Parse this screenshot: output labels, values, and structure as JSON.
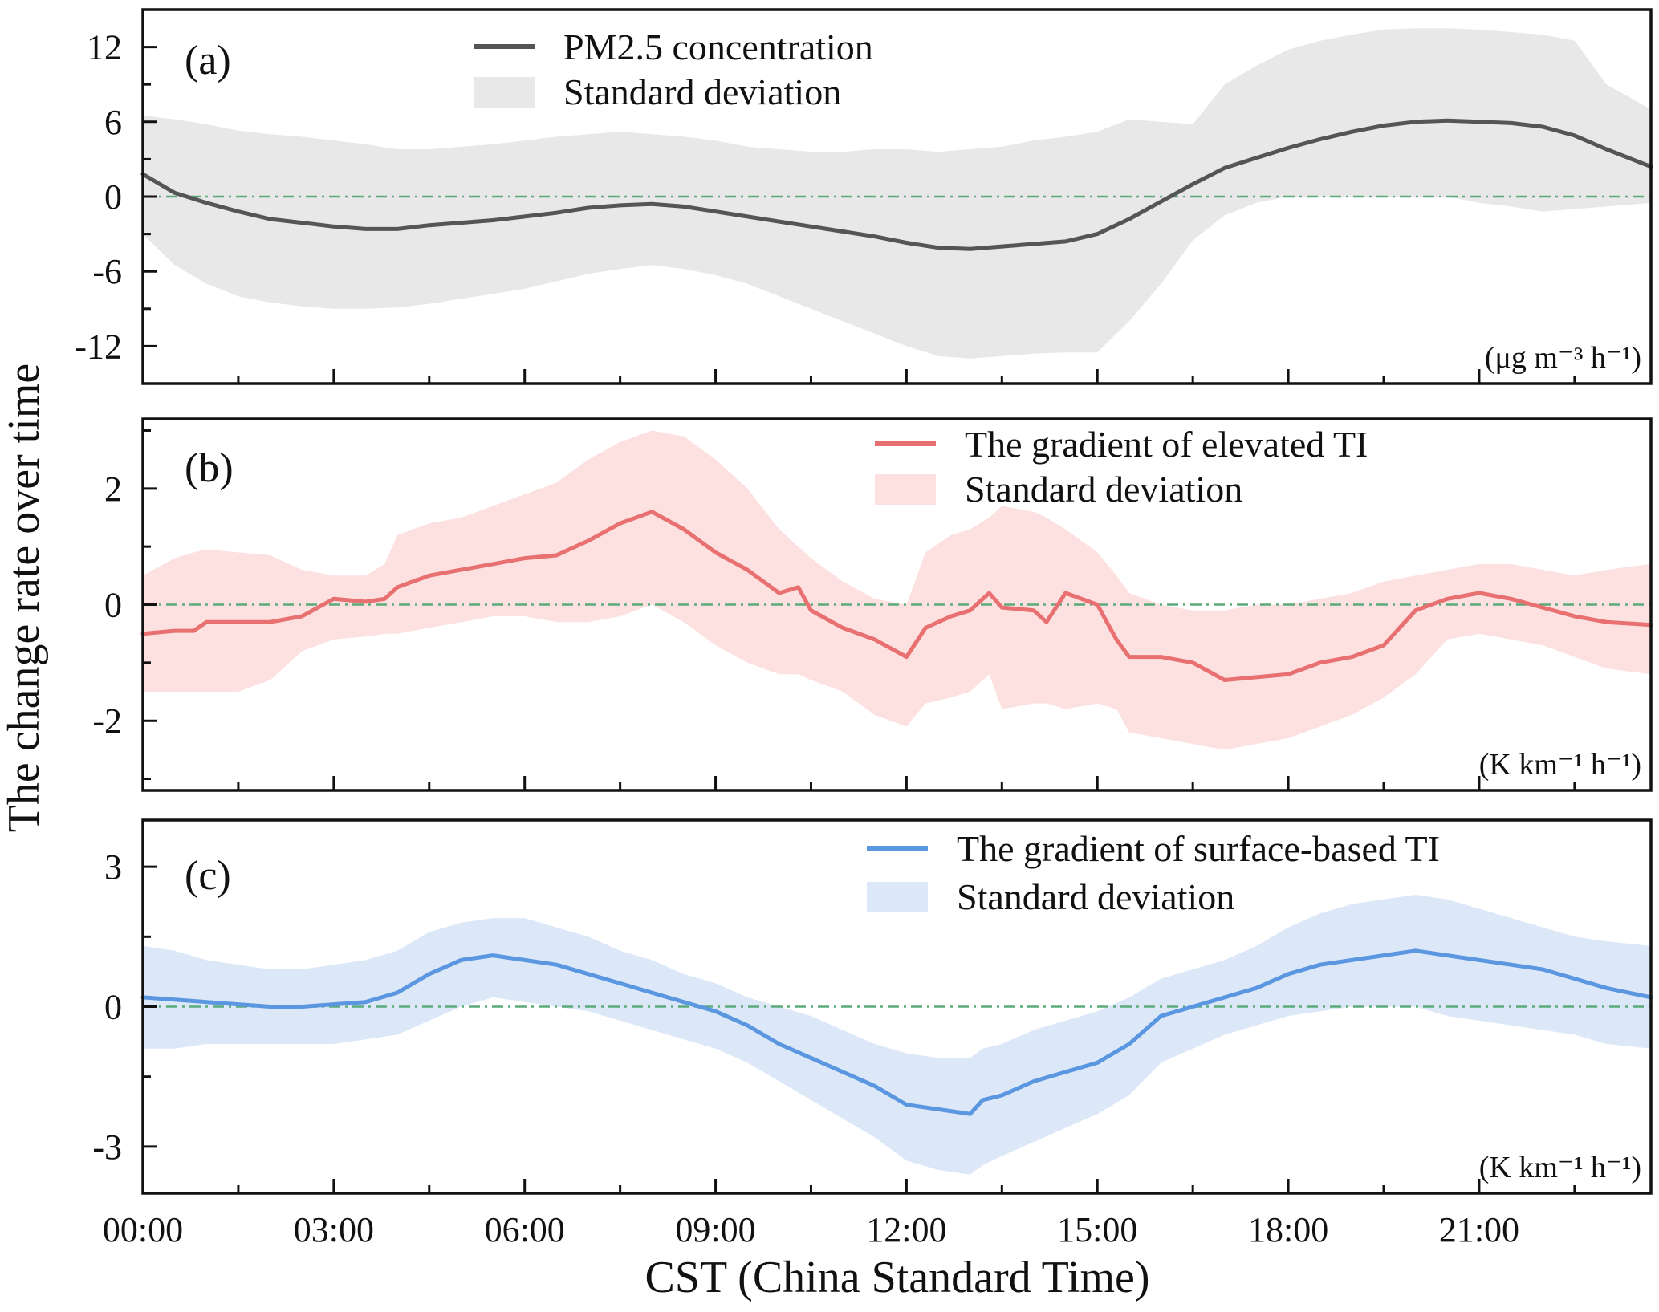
{
  "y_axis_title": "The change rate over time",
  "x_axis_title": "CST (China Standard Time)",
  "x_tick_labels": [
    "00:00",
    "03:00",
    "06:00",
    "09:00",
    "12:00",
    "15:00",
    "18:00",
    "21:00"
  ],
  "zero_line_color": "#5aaa7a",
  "chart_data": [
    {
      "type": "line",
      "panel_label": "(a)",
      "unit": "(μg m⁻³ h⁻¹)",
      "xlim": [
        0,
        23.7
      ],
      "ylim": [
        -15,
        15
      ],
      "yticks": [
        "12",
        "6",
        "0",
        "-6",
        "-12"
      ],
      "ytick_values": [
        12,
        6,
        0,
        -6,
        -12
      ],
      "line_color": "#555555",
      "band_color": "#e8e8e8",
      "legend": [
        "PM2.5 concentration",
        "Standard deviation"
      ],
      "series": [
        {
          "name": "PM2.5 concentration",
          "x": [
            0,
            0.5,
            1,
            1.5,
            2,
            2.5,
            3,
            3.5,
            4,
            4.5,
            5,
            5.5,
            6,
            6.5,
            7,
            7.5,
            8,
            8.5,
            9,
            9.5,
            10,
            10.5,
            11,
            11.5,
            12,
            12.5,
            13,
            13.5,
            14,
            14.5,
            15,
            15.5,
            16,
            16.5,
            17,
            17.5,
            18,
            18.5,
            19,
            19.5,
            20,
            20.5,
            21,
            21.5,
            22,
            22.5,
            23,
            23.7
          ],
          "y": [
            1.8,
            0.3,
            -0.5,
            -1.2,
            -1.8,
            -2.1,
            -2.4,
            -2.6,
            -2.6,
            -2.3,
            -2.1,
            -1.9,
            -1.6,
            -1.3,
            -0.9,
            -0.7,
            -0.6,
            -0.8,
            -1.2,
            -1.6,
            -2.0,
            -2.4,
            -2.8,
            -3.2,
            -3.7,
            -4.1,
            -4.2,
            -4.0,
            -3.8,
            -3.6,
            -3.0,
            -1.8,
            -0.4,
            1.0,
            2.3,
            3.1,
            3.9,
            4.6,
            5.2,
            5.7,
            6.0,
            6.1,
            6.0,
            5.9,
            5.6,
            4.9,
            3.8,
            2.4
          ],
          "upper": [
            6.5,
            6.2,
            5.8,
            5.3,
            5.0,
            4.8,
            4.5,
            4.2,
            3.8,
            3.8,
            4.0,
            4.2,
            4.5,
            4.8,
            5.0,
            5.2,
            5.0,
            4.8,
            4.5,
            4.0,
            3.8,
            3.6,
            3.6,
            3.8,
            3.8,
            3.6,
            3.8,
            4.0,
            4.5,
            4.8,
            5.2,
            6.2,
            6.0,
            5.8,
            9.0,
            10.5,
            11.8,
            12.5,
            13.0,
            13.4,
            13.5,
            13.5,
            13.4,
            13.2,
            13.0,
            12.5,
            9.0,
            7.0
          ],
          "lower": [
            -3.0,
            -5.5,
            -7.0,
            -8.0,
            -8.5,
            -8.8,
            -9.0,
            -9.0,
            -8.9,
            -8.6,
            -8.2,
            -7.8,
            -7.4,
            -6.8,
            -6.2,
            -5.8,
            -5.5,
            -5.8,
            -6.3,
            -7.0,
            -8.0,
            -9.0,
            -10.0,
            -11.0,
            -12.0,
            -12.8,
            -13.0,
            -12.8,
            -12.6,
            -12.5,
            -12.5,
            -10.0,
            -7.0,
            -3.5,
            -1.5,
            -0.5,
            0.0,
            0.0,
            0.0,
            0.0,
            0.0,
            0.0,
            -0.5,
            -0.8,
            -1.2,
            -1.0,
            -0.8,
            -0.5
          ]
        }
      ]
    },
    {
      "type": "line",
      "panel_label": "(b)",
      "unit": "(K km⁻¹ h⁻¹)",
      "xlim": [
        0,
        23.7
      ],
      "ylim": [
        -3.2,
        3.2
      ],
      "yticks": [
        "2",
        "0",
        "-2"
      ],
      "ytick_values": [
        2,
        0,
        -2
      ],
      "line_color": "#e87070",
      "band_color": "#fde0e0",
      "legend": [
        "The gradient of elevated TI",
        "Standard deviation"
      ],
      "series": [
        {
          "name": "The gradient of elevated TI",
          "x": [
            0,
            0.5,
            0.8,
            1,
            1.5,
            2,
            2.5,
            3,
            3.5,
            3.8,
            4,
            4.5,
            5,
            5.5,
            6,
            6.5,
            7,
            7.5,
            8,
            8.5,
            9,
            9.5,
            10,
            10.3,
            10.5,
            11,
            11.5,
            12,
            12.3,
            12.7,
            13,
            13.3,
            13.5,
            14,
            14.2,
            14.5,
            15,
            15.3,
            15.5,
            16,
            16.5,
            17,
            17.5,
            18,
            18.5,
            19,
            19.5,
            20,
            20.5,
            21,
            21.5,
            22,
            22.5,
            23,
            23.7
          ],
          "y": [
            -0.5,
            -0.45,
            -0.45,
            -0.3,
            -0.3,
            -0.3,
            -0.2,
            0.1,
            0.05,
            0.1,
            0.3,
            0.5,
            0.6,
            0.7,
            0.8,
            0.85,
            1.1,
            1.4,
            1.6,
            1.3,
            0.9,
            0.6,
            0.2,
            0.3,
            -0.1,
            -0.4,
            -0.6,
            -0.9,
            -0.4,
            -0.2,
            -0.1,
            0.2,
            -0.05,
            -0.1,
            -0.3,
            0.2,
            0.0,
            -0.6,
            -0.9,
            -0.9,
            -1.0,
            -1.3,
            -1.25,
            -1.2,
            -1.0,
            -0.9,
            -0.7,
            -0.1,
            0.1,
            0.2,
            0.1,
            -0.05,
            -0.2,
            -0.3,
            -0.35
          ],
          "upper": [
            0.5,
            0.8,
            0.9,
            0.95,
            0.9,
            0.85,
            0.6,
            0.5,
            0.5,
            0.7,
            1.2,
            1.4,
            1.5,
            1.7,
            1.9,
            2.1,
            2.5,
            2.8,
            3.0,
            2.9,
            2.5,
            2.0,
            1.3,
            1.0,
            0.8,
            0.4,
            0.1,
            0.0,
            0.9,
            1.2,
            1.3,
            1.5,
            1.7,
            1.6,
            1.5,
            1.3,
            0.9,
            0.5,
            0.2,
            0.0,
            -0.1,
            -0.1,
            0.0,
            0.0,
            0.1,
            0.2,
            0.4,
            0.5,
            0.6,
            0.7,
            0.7,
            0.6,
            0.5,
            0.6,
            0.7
          ],
          "lower": [
            -1.5,
            -1.5,
            -1.5,
            -1.5,
            -1.5,
            -1.3,
            -0.8,
            -0.6,
            -0.55,
            -0.5,
            -0.5,
            -0.4,
            -0.3,
            -0.2,
            -0.2,
            -0.3,
            -0.3,
            -0.2,
            0.0,
            -0.3,
            -0.7,
            -1.0,
            -1.2,
            -1.2,
            -1.3,
            -1.5,
            -1.9,
            -2.1,
            -1.7,
            -1.6,
            -1.5,
            -1.2,
            -1.8,
            -1.7,
            -1.7,
            -1.8,
            -1.7,
            -1.8,
            -2.2,
            -2.3,
            -2.4,
            -2.5,
            -2.4,
            -2.3,
            -2.1,
            -1.9,
            -1.6,
            -1.2,
            -0.6,
            -0.5,
            -0.6,
            -0.7,
            -0.9,
            -1.1,
            -1.2
          ]
        }
      ]
    },
    {
      "type": "line",
      "panel_label": "(c)",
      "unit": "(K km⁻¹ h⁻¹)",
      "xlim": [
        0,
        23.7
      ],
      "ylim": [
        -4.0,
        4.0
      ],
      "yticks": [
        "3",
        "0",
        "-3"
      ],
      "ytick_values": [
        3,
        0,
        -3
      ],
      "line_color": "#5b96e0",
      "band_color": "#dce8f8",
      "legend": [
        "The gradient of surface-based TI",
        "Standard deviation"
      ],
      "series": [
        {
          "name": "The gradient of surface-based TI",
          "x": [
            0,
            0.5,
            1,
            1.5,
            2,
            2.5,
            3,
            3.5,
            4,
            4.5,
            5,
            5.5,
            6,
            6.5,
            7,
            7.5,
            8,
            8.5,
            9,
            9.5,
            10,
            10.5,
            11,
            11.5,
            12,
            12.5,
            13,
            13.2,
            13.5,
            14,
            14.5,
            15,
            15.5,
            16,
            16.5,
            17,
            17.5,
            18,
            18.5,
            19,
            19.5,
            20,
            20.5,
            21,
            21.5,
            22,
            22.5,
            23,
            23.7
          ],
          "y": [
            0.2,
            0.15,
            0.1,
            0.05,
            0.0,
            0.0,
            0.05,
            0.1,
            0.3,
            0.7,
            1.0,
            1.1,
            1.0,
            0.9,
            0.7,
            0.5,
            0.3,
            0.1,
            -0.1,
            -0.4,
            -0.8,
            -1.1,
            -1.4,
            -1.7,
            -2.1,
            -2.2,
            -2.3,
            -2.0,
            -1.9,
            -1.6,
            -1.4,
            -1.2,
            -0.8,
            -0.2,
            0.0,
            0.2,
            0.4,
            0.7,
            0.9,
            1.0,
            1.1,
            1.2,
            1.1,
            1.0,
            0.9,
            0.8,
            0.6,
            0.4,
            0.2
          ],
          "upper": [
            1.3,
            1.2,
            1.0,
            0.9,
            0.8,
            0.8,
            0.9,
            1.0,
            1.2,
            1.6,
            1.8,
            1.9,
            1.9,
            1.7,
            1.5,
            1.2,
            1.0,
            0.7,
            0.5,
            0.2,
            0.0,
            -0.2,
            -0.5,
            -0.8,
            -1.0,
            -1.1,
            -1.1,
            -0.9,
            -0.8,
            -0.5,
            -0.3,
            -0.1,
            0.2,
            0.6,
            0.8,
            1.0,
            1.3,
            1.7,
            2.0,
            2.2,
            2.3,
            2.4,
            2.3,
            2.1,
            1.9,
            1.7,
            1.5,
            1.4,
            1.3
          ],
          "lower": [
            -0.9,
            -0.9,
            -0.8,
            -0.8,
            -0.8,
            -0.8,
            -0.8,
            -0.7,
            -0.6,
            -0.3,
            0.0,
            0.2,
            0.1,
            0.0,
            -0.1,
            -0.3,
            -0.5,
            -0.7,
            -0.9,
            -1.2,
            -1.6,
            -2.0,
            -2.4,
            -2.8,
            -3.3,
            -3.5,
            -3.6,
            -3.4,
            -3.2,
            -2.9,
            -2.6,
            -2.3,
            -1.9,
            -1.2,
            -0.9,
            -0.6,
            -0.4,
            -0.2,
            -0.1,
            0.0,
            0.0,
            0.0,
            -0.2,
            -0.3,
            -0.4,
            -0.5,
            -0.6,
            -0.8,
            -0.9
          ]
        }
      ]
    }
  ]
}
